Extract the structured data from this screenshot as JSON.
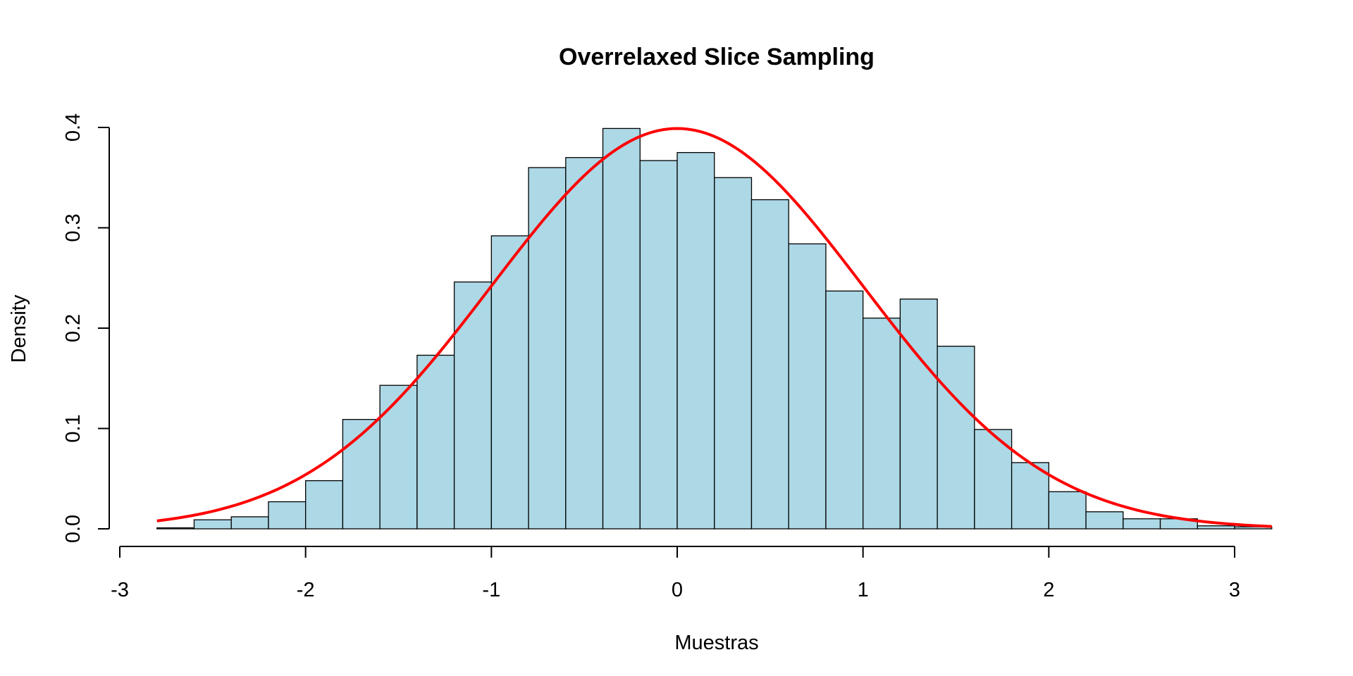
{
  "chart_data": {
    "type": "bar",
    "subtype": "histogram-with-density-curve",
    "title": "Overrelaxed Slice Sampling",
    "xlabel": "Muestras",
    "ylabel": "Density",
    "xlim": [
      -3,
      3.2
    ],
    "ylim": [
      0,
      0.4
    ],
    "x_ticks": [
      -3,
      -2,
      -1,
      0,
      1,
      2,
      3
    ],
    "x_tick_labels": [
      "-3",
      "-2",
      "-1",
      "0",
      "1",
      "2",
      "3"
    ],
    "y_ticks": [
      0,
      0.1,
      0.2,
      0.3,
      0.4
    ],
    "y_tick_labels": [
      "0.0",
      "0.1",
      "0.2",
      "0.3",
      "0.4"
    ],
    "bin_width": 0.2,
    "bins_start": [
      -2.8,
      -2.6,
      -2.4,
      -2.2,
      -2.0,
      -1.8,
      -1.6,
      -1.4,
      -1.2,
      -1.0,
      -0.8,
      -0.6,
      -0.4,
      -0.2,
      0.0,
      0.2,
      0.4,
      0.6,
      0.8,
      1.0,
      1.2,
      1.4,
      1.6,
      1.8,
      2.0,
      2.2,
      2.4,
      2.6,
      2.8,
      3.0
    ],
    "values": [
      0.001,
      0.009,
      0.012,
      0.027,
      0.048,
      0.109,
      0.143,
      0.173,
      0.246,
      0.292,
      0.36,
      0.37,
      0.399,
      0.367,
      0.375,
      0.35,
      0.328,
      0.284,
      0.237,
      0.21,
      0.229,
      0.182,
      0.099,
      0.066,
      0.037,
      0.017,
      0.01,
      0.01,
      0.003,
      0.002
    ],
    "curve": {
      "type": "normal-density",
      "mean": 0,
      "sd": 1,
      "x_range": [
        -2.8,
        3.2
      ]
    },
    "colors": {
      "bar_fill": "#ADD8E6",
      "bar_stroke": "#000000",
      "curve": "#FF0000"
    },
    "grid": false,
    "legend": "none"
  }
}
